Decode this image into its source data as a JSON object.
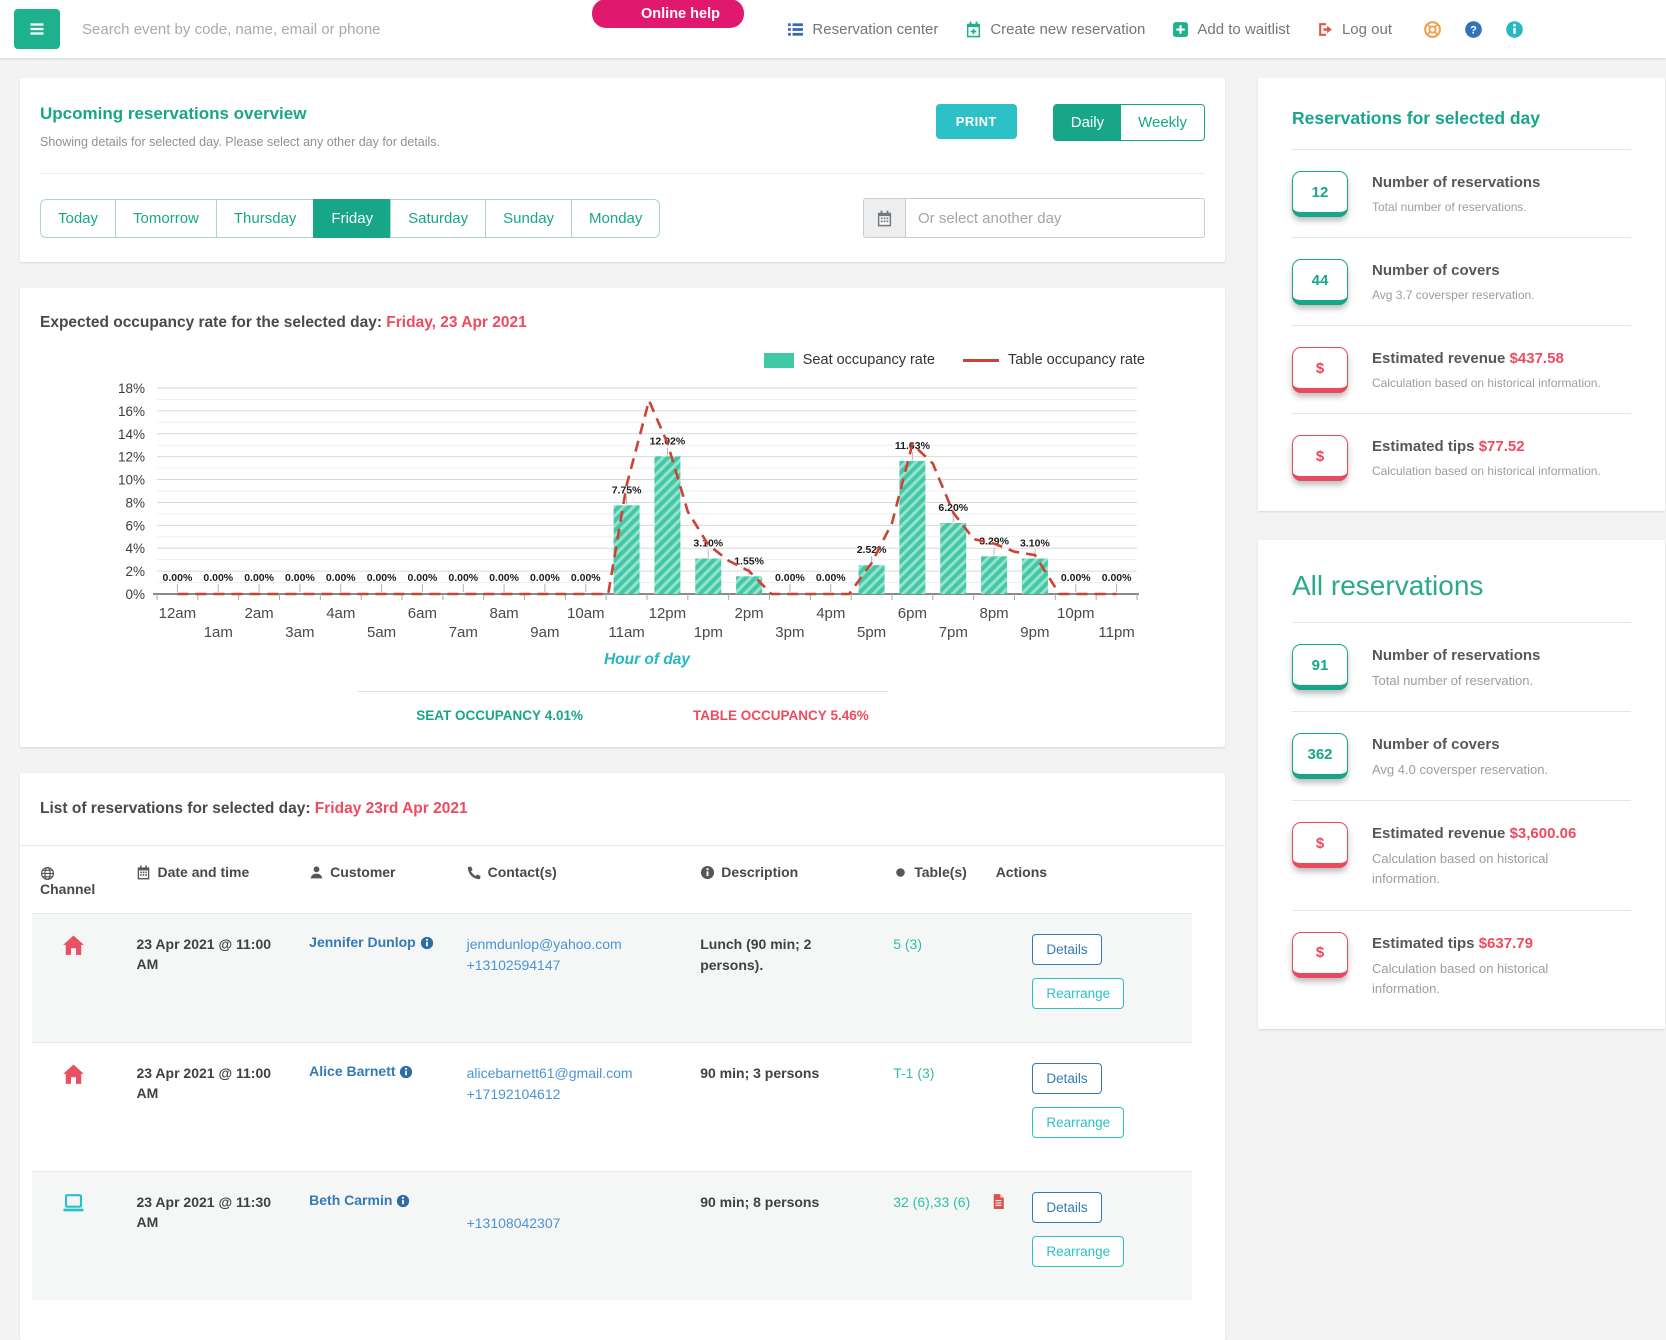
{
  "topbar": {
    "search_placeholder": "Search event by code, name, email or phone",
    "online_help_label": "Online help",
    "nav_items": [
      {
        "id": "reservation-center",
        "icon": "list-icon",
        "color": "#3a67ad",
        "label": "Reservation center"
      },
      {
        "id": "create-new-reservation",
        "icon": "calendar-plus-icon",
        "color": "#1db18d",
        "label": "Create new reservation"
      },
      {
        "id": "add-to-waitlist",
        "icon": "plus-square-icon",
        "color": "#1db18d",
        "label": "Add to waitlist"
      },
      {
        "id": "log-out",
        "icon": "sign-out-icon",
        "color": "#e2574c",
        "label": "Log out"
      }
    ],
    "utility_icons": [
      {
        "name": "life-ring-icon",
        "color": "#f0a150"
      },
      {
        "name": "question-circle-icon",
        "color": "#3372b5"
      },
      {
        "name": "info-circle-icon",
        "color": "#27b9c2"
      }
    ]
  },
  "overview": {
    "title": "Upcoming reservations overview",
    "subtitle": "Showing details for selected day. Please select any other day for details.",
    "print_label": "PRINT",
    "view_toggle": {
      "options": [
        "Daily",
        "Weekly"
      ],
      "selected": "Daily"
    },
    "day_tabs": {
      "options": [
        "Today",
        "Tomorrow",
        "Thursday",
        "Friday",
        "Saturday",
        "Sunday",
        "Monday"
      ],
      "selected": "Friday"
    },
    "datepicker_placeholder": "Or select another day"
  },
  "chart_section": {
    "title_prefix": "Expected occupancy rate for the selected day:",
    "title_date": "Friday, 23 Apr 2021",
    "xlabel": "Hour of day",
    "footer": {
      "seat_label": "SEAT OCCUPANCY",
      "seat_value": "4.01%",
      "table_label": "TABLE OCCUPANCY",
      "table_value": "5.46%"
    }
  },
  "chart_data": {
    "type": "bar",
    "title": "Expected occupancy rate for the selected day: Friday, 23 Apr 2021",
    "xlabel": "Hour of day",
    "ylabel": "",
    "categories": [
      "12am",
      "1am",
      "2am",
      "3am",
      "4am",
      "5am",
      "6am",
      "7am",
      "8am",
      "9am",
      "10am",
      "11am",
      "12pm",
      "1pm",
      "2pm",
      "3pm",
      "4pm",
      "5pm",
      "6pm",
      "7pm",
      "8pm",
      "9pm",
      "10pm",
      "11pm"
    ],
    "ylim": [
      0,
      18
    ],
    "ytick_step": 2,
    "ytick_suffix": "%",
    "grid": true,
    "legend_position": "top-right",
    "series": [
      {
        "name": "Seat occupancy rate",
        "type": "bar",
        "color": "#41c9a5",
        "values": [
          0,
          0,
          0,
          0,
          0,
          0,
          0,
          0,
          0,
          0,
          0,
          7.75,
          12.02,
          3.1,
          1.55,
          0,
          0,
          2.52,
          11.63,
          6.2,
          3.29,
          3.1,
          0,
          0
        ]
      },
      {
        "name": "Table occupancy rate",
        "type": "line",
        "color": "#cb4335",
        "dashed": true,
        "points": [
          [
            0,
            0
          ],
          [
            1,
            0
          ],
          [
            2,
            0
          ],
          [
            3,
            0
          ],
          [
            4,
            0
          ],
          [
            5,
            0
          ],
          [
            6,
            0
          ],
          [
            7,
            0
          ],
          [
            8,
            0
          ],
          [
            9,
            0
          ],
          [
            10,
            0
          ],
          [
            10.55,
            0
          ],
          [
            11,
            9.5
          ],
          [
            11.55,
            16.9
          ],
          [
            12,
            13.2
          ],
          [
            12.5,
            7.2
          ],
          [
            13,
            4.3
          ],
          [
            13.5,
            2.9
          ],
          [
            14,
            2.0
          ],
          [
            14.55,
            0
          ],
          [
            15,
            0
          ],
          [
            16,
            0
          ],
          [
            16.45,
            0
          ],
          [
            17,
            2.7
          ],
          [
            17.5,
            6.2
          ],
          [
            18,
            13.1
          ],
          [
            18.5,
            11.4
          ],
          [
            19,
            7.1
          ],
          [
            19.5,
            4.8
          ],
          [
            20,
            4.4
          ],
          [
            20.5,
            3.7
          ],
          [
            21,
            3.4
          ],
          [
            21.6,
            0
          ],
          [
            22,
            0
          ],
          [
            23,
            0
          ]
        ]
      }
    ],
    "summary": {
      "seat_occupancy": "4.01%",
      "table_occupancy": "5.46%"
    }
  },
  "reservation_list": {
    "title_prefix": "List of reservations for selected day:",
    "title_date": "Friday 23rd Apr 2021",
    "columns": [
      {
        "icon": "globe-icon",
        "label": "Channel"
      },
      {
        "icon": "calendar-icon",
        "label": "Date and time"
      },
      {
        "icon": "user-icon",
        "label": "Customer"
      },
      {
        "icon": "phone-icon",
        "label": "Contact(s)"
      },
      {
        "icon": "info-circle-icon",
        "label": "Description"
      },
      {
        "icon": "circle-icon",
        "label": "Table(s)"
      },
      {
        "icon": "gears-icon",
        "label": "Actions"
      }
    ],
    "action_labels": [
      "Details",
      "Rearrange"
    ],
    "rows": [
      {
        "channel_icon": "house-icon",
        "datetime": "23 Apr 2021 @ 11:00 AM",
        "customer": "Jennifer Dunlop",
        "email": "jenmdunlop@yahoo.com",
        "phone": "+13102594147",
        "description": "Lunch (90 min; 2 persons).",
        "tables": "5 (3)",
        "note_icon": false
      },
      {
        "channel_icon": "house-icon",
        "datetime": "23 Apr 2021 @ 11:00 AM",
        "customer": "Alice Barnett",
        "email": "alicebarnett61@gmail.com",
        "phone": "+17192104612",
        "description": "90 min; 3 persons",
        "tables": "T-1 (3)",
        "note_icon": false
      },
      {
        "channel_icon": "laptop-icon",
        "datetime": "23 Apr 2021 @ 11:30 AM",
        "customer": "Beth Carmin",
        "email": "",
        "phone": "+13108042307",
        "description": "90 min; 8 persons",
        "tables": "32 (6),33 (6)",
        "note_icon": true
      }
    ]
  },
  "sidebar": {
    "panels": [
      {
        "title": "Reservations for selected day",
        "style": "bold",
        "stats": [
          {
            "badge": "12",
            "color": "teal",
            "title": "Number of reservations",
            "value": "",
            "caption": "Total number of reservations."
          },
          {
            "badge": "44",
            "color": "teal",
            "title": "Number of covers",
            "value": "",
            "caption": "Avg 3.7 coversper reservation."
          },
          {
            "badge": "$",
            "color": "red",
            "title": "Estimated revenue",
            "value": "$437.58",
            "caption": "Calculation based on historical information."
          },
          {
            "badge": "$",
            "color": "red",
            "title": "Estimated tips",
            "value": "$77.52",
            "caption": "Calculation based on historical information."
          }
        ]
      },
      {
        "title": "All reservations",
        "style": "light",
        "stats": [
          {
            "badge": "91",
            "color": "teal",
            "title": "Number of reservations",
            "value": "",
            "caption": "Total number of reservation."
          },
          {
            "badge": "362",
            "color": "teal",
            "title": "Number of covers",
            "value": "",
            "caption": "Avg 4.0 coversper reservation."
          },
          {
            "badge": "$",
            "color": "red",
            "title": "Estimated revenue",
            "value": "$3,600.06",
            "caption": "Calculation based on historical information."
          },
          {
            "badge": "$",
            "color": "red",
            "title": "Estimated tips",
            "value": "$637.79",
            "caption": "Calculation based on historical information."
          }
        ]
      }
    ]
  },
  "colors": {
    "primary_teal": "#18a689",
    "cyan": "#2cc0c7",
    "pink": "#e0196e",
    "red_accent": "#ee4b5f",
    "bar_teal": "#41c9a5",
    "chart_line_red": "#cb4335",
    "link_blue": "#337ab7",
    "house_icon": "#e85063",
    "laptop_icon": "#29c1c9",
    "doc_icon": "#d9534f"
  }
}
